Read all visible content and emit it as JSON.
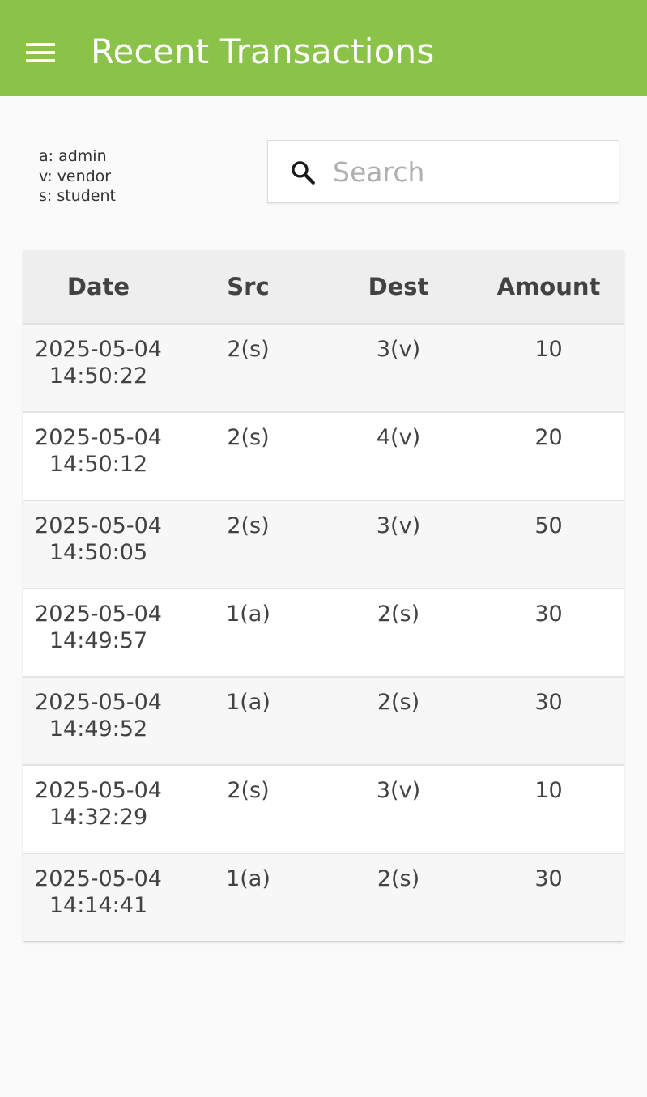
{
  "appbar": {
    "title": "Recent Transactions",
    "menu_icon": "hamburger-menu-icon",
    "background": "#8bc34a"
  },
  "legend": {
    "items": [
      "a: admin",
      "v: vendor",
      "s: student"
    ]
  },
  "search": {
    "placeholder": "Search",
    "value": "",
    "icon": "search-icon"
  },
  "table": {
    "headers": {
      "date": "Date",
      "src": "Src",
      "dest": "Dest",
      "amount": "Amount"
    },
    "rows": [
      {
        "date": "2025-05-04",
        "time": "14:50:22",
        "src": "2(s)",
        "dest": "3(v)",
        "amount": "10"
      },
      {
        "date": "2025-05-04",
        "time": "14:50:12",
        "src": "2(s)",
        "dest": "4(v)",
        "amount": "20"
      },
      {
        "date": "2025-05-04",
        "time": "14:50:05",
        "src": "2(s)",
        "dest": "3(v)",
        "amount": "50"
      },
      {
        "date": "2025-05-04",
        "time": "14:49:57",
        "src": "1(a)",
        "dest": "2(s)",
        "amount": "30"
      },
      {
        "date": "2025-05-04",
        "time": "14:49:52",
        "src": "1(a)",
        "dest": "2(s)",
        "amount": "30"
      },
      {
        "date": "2025-05-04",
        "time": "14:32:29",
        "src": "2(s)",
        "dest": "3(v)",
        "amount": "10"
      },
      {
        "date": "2025-05-04",
        "time": "14:14:41",
        "src": "1(a)",
        "dest": "2(s)",
        "amount": "30"
      }
    ]
  }
}
